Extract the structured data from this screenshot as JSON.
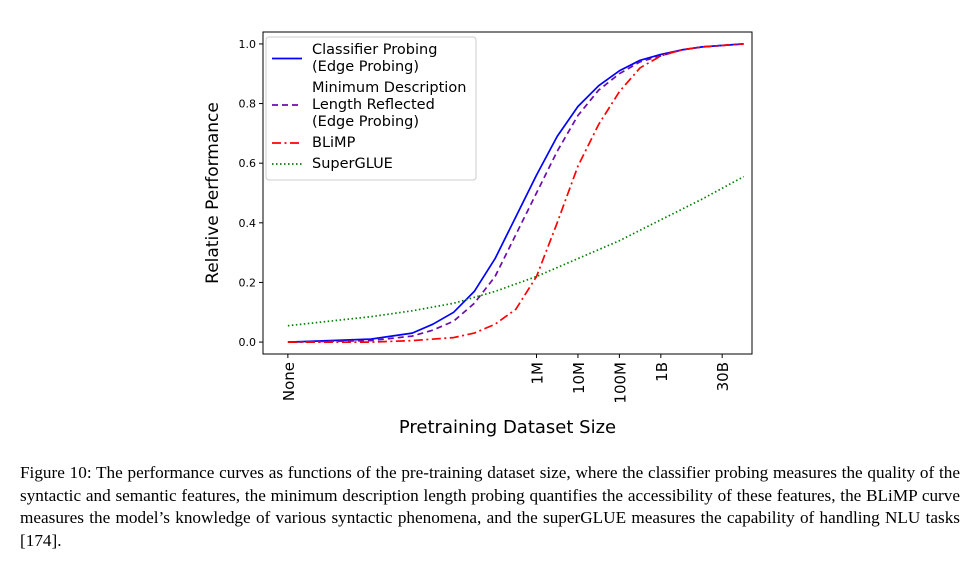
{
  "chart_data": {
    "type": "line",
    "ylabel": "Relative Performance",
    "xlabel": "Pretraining Dataset Size",
    "ylim": [
      0.0,
      1.0
    ],
    "yticks": [
      0.0,
      0.2,
      0.4,
      0.6,
      0.8,
      1.0
    ],
    "ytick_labels": [
      "0.0",
      "0.2",
      "0.4",
      "0.6",
      "0.8",
      "1.0"
    ],
    "xticks": [
      {
        "label": "None",
        "log10": 0
      },
      {
        "label": "1M",
        "log10": 6
      },
      {
        "label": "10M",
        "log10": 7
      },
      {
        "label": "100M",
        "log10": 8
      },
      {
        "label": "1B",
        "log10": 9
      },
      {
        "label": "30B",
        "log10": 10.48
      }
    ],
    "x_axis_scale": "log10 dataset size (None = 0)",
    "xlim": [
      -0.6,
      11.2
    ],
    "legend_position": "top-left",
    "series": [
      {
        "name": "Classifier Probing (Edge Probing)",
        "legend_lines": [
          "Classifier Probing",
          "(Edge Probing)"
        ],
        "color": "#0000ff",
        "style": "solid",
        "x": [
          0,
          2,
          3,
          3.5,
          4,
          4.5,
          5,
          5.5,
          6,
          6.5,
          7,
          7.5,
          8,
          8.5,
          9,
          9.5,
          10,
          10.5,
          11
        ],
        "y": [
          0.0,
          0.01,
          0.03,
          0.06,
          0.1,
          0.17,
          0.28,
          0.42,
          0.56,
          0.69,
          0.79,
          0.86,
          0.91,
          0.945,
          0.965,
          0.98,
          0.99,
          0.995,
          1.0
        ]
      },
      {
        "name": "Minimum Description Length Reflected (Edge Probing)",
        "legend_lines": [
          "Minimum Description",
          "Length Reflected",
          "(Edge Probing)"
        ],
        "color": "#6a0dad",
        "style": "dashed",
        "x": [
          0,
          2,
          3,
          3.5,
          4,
          4.5,
          5,
          5.5,
          6,
          6.5,
          7,
          7.5,
          8,
          8.5,
          9,
          9.5,
          10,
          10.5,
          11
        ],
        "y": [
          0.0,
          0.005,
          0.02,
          0.04,
          0.07,
          0.13,
          0.22,
          0.36,
          0.5,
          0.64,
          0.76,
          0.845,
          0.9,
          0.94,
          0.96,
          0.98,
          0.99,
          0.995,
          1.0
        ]
      },
      {
        "name": "BLiMP",
        "legend_lines": [
          "BLiMP"
        ],
        "color": "#ff0000",
        "style": "dashdot",
        "x": [
          0,
          2,
          3,
          4,
          4.5,
          5,
          5.5,
          6,
          6.5,
          7,
          7.5,
          8,
          8.5,
          9,
          9.5,
          10,
          10.5,
          11
        ],
        "y": [
          0.0,
          0.0,
          0.005,
          0.015,
          0.03,
          0.06,
          0.11,
          0.22,
          0.4,
          0.59,
          0.73,
          0.84,
          0.92,
          0.96,
          0.98,
          0.99,
          0.995,
          1.0
        ]
      },
      {
        "name": "SuperGLUE",
        "legend_lines": [
          "SuperGLUE"
        ],
        "color": "#008000",
        "style": "dotted",
        "x": [
          0,
          1,
          2,
          3,
          4,
          5,
          6,
          7,
          8,
          9,
          10,
          11
        ],
        "y": [
          0.055,
          0.07,
          0.085,
          0.105,
          0.13,
          0.17,
          0.22,
          0.28,
          0.34,
          0.41,
          0.48,
          0.555
        ]
      }
    ]
  },
  "caption": "Figure 10: The performance curves as functions of the pre-training dataset size, where the classifier probing measures the quality of the syntactic and semantic features, the minimum description length probing quantifies the accessibility of these features, the BLiMP curve measures the model’s knowledge of various syntactic phenomena, and the superGLUE measures the capability of handling NLU tasks [174]."
}
